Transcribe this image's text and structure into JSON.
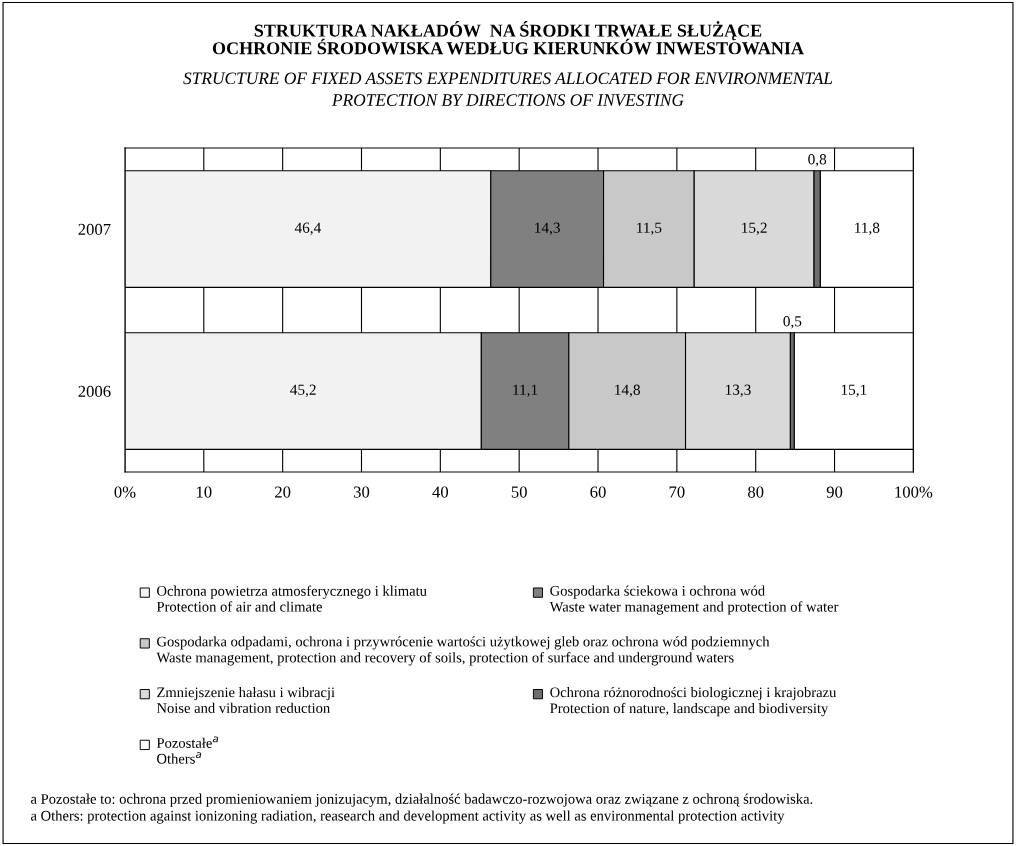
{
  "chart_data": {
    "type": "bar",
    "orientation": "horizontal",
    "stacked": true,
    "title": "STRUKTURA NAKŁADÓW  NA ŚRODKI TRWAŁE SŁUŻĄCE\nOCHRONIE ŚRODOWISKA WEDŁUG KIERUNKÓW INWESTOWANIA",
    "subtitle": "STRUCTURE OF FIXED ASSETS EXPENDITURES ALLOCATED FOR ENVIRONMENTAL\nPROTECTION BY DIRECTIONS OF INVESTING",
    "categories": [
      "2007",
      "2006"
    ],
    "series": [
      {
        "name": "Ochrona powietrza atmosferycznego i klimatu\nProtection of air and climate",
        "color": "#f2f2f2",
        "values": [
          46.4,
          45.2
        ],
        "value_labels": [
          "46,4",
          "45,2"
        ]
      },
      {
        "name": "Gospodarka ściekowa i ochrona wód\nWaste water management and protection of water",
        "color": "#808080",
        "values": [
          14.3,
          11.1
        ],
        "value_labels": [
          "14,3",
          "11,1"
        ]
      },
      {
        "name": "Gospodarka odpadami, ochrona i przywrócenie wartości użytkowej gleb oraz ochrona wód podziemnych\nWaste management, protection and recovery of soils, protection of surface and underground waters",
        "color": "#c8c8c8",
        "values": [
          11.5,
          14.8
        ],
        "value_labels": [
          "11,5",
          "14,8"
        ]
      },
      {
        "name": "Zmniejszenie hałasu i wibracji\nNoise and vibration reduction",
        "color": "#d9d9d9",
        "values": [
          15.2,
          13.3
        ],
        "value_labels": [
          "15,2",
          "13,3"
        ]
      },
      {
        "name": "Ochrona różnorodności biologicznej i krajobrazu\nProtection of nature, landscape and biodiversity",
        "color": "#6e6e6e",
        "values": [
          0.8,
          0.5
        ],
        "value_labels": [
          "0,8",
          "0,5"
        ]
      },
      {
        "name": "Pozostałe$^{a}$\nOthers$^{a}$",
        "color": "#ffffff",
        "values": [
          11.8,
          15.1
        ],
        "value_labels": [
          "11,8",
          "15,1"
        ]
      }
    ],
    "xlim": [
      0,
      100
    ],
    "xticks": [
      {
        "value": 0,
        "label": "0%"
      },
      10,
      20,
      30,
      40,
      50,
      60,
      70,
      80,
      90,
      {
        "value": 100,
        "label": "100%"
      }
    ],
    "grid": "x",
    "legend": "bottom",
    "annotations": [
      "a Pozostałe to: ochrona przed promieniowaniem jonizujacym, działalność badawczo-rozwojowa oraz związane z ochroną środowiska.\na Others: protection against ionizoning radiation, reasearch and development activity as well as environmental protection activity"
    ]
  }
}
